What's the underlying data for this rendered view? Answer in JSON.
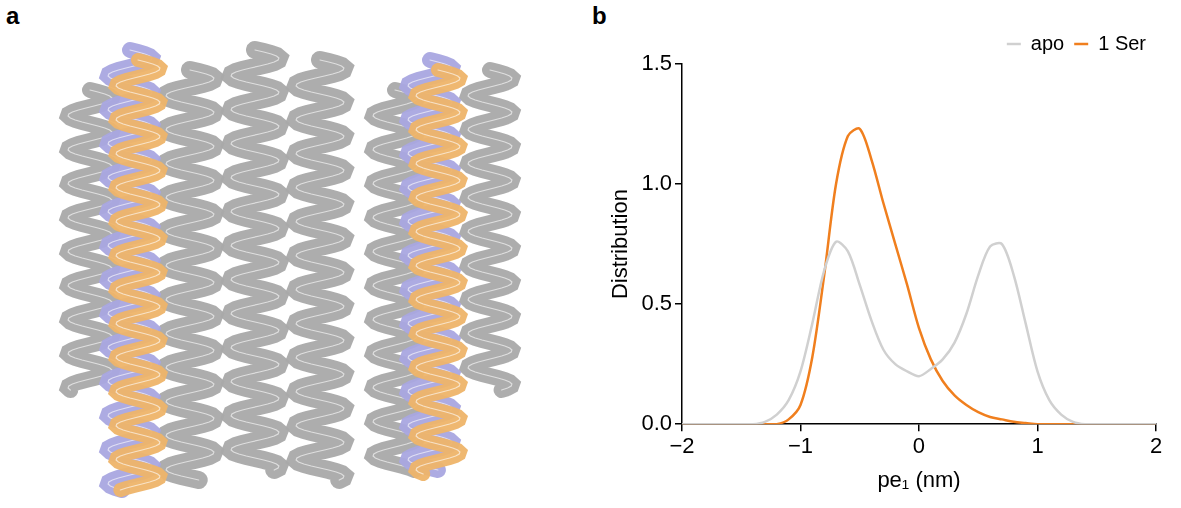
{
  "panel_labels": [
    "a",
    "b"
  ],
  "chart_data": {
    "type": "line",
    "x_label": "pe₁ (nm)",
    "y_label": "Distribution",
    "x": [
      -2.0,
      -1.9,
      -1.8,
      -1.7,
      -1.6,
      -1.5,
      -1.4,
      -1.3,
      -1.2,
      -1.1,
      -1.0,
      -0.9,
      -0.8,
      -0.7,
      -0.6,
      -0.5,
      -0.4,
      -0.3,
      -0.2,
      -0.1,
      0.0,
      0.1,
      0.2,
      0.3,
      0.4,
      0.5,
      0.6,
      0.7,
      0.8,
      0.9,
      1.0,
      1.1,
      1.2,
      1.3,
      1.4,
      1.5,
      1.6,
      1.7,
      1.8,
      1.9,
      2.0
    ],
    "series": [
      {
        "name": "apo",
        "color": "#d0d0d0",
        "values": [
          0,
          0,
          0,
          0,
          0,
          0,
          0,
          0.01,
          0.04,
          0.1,
          0.22,
          0.42,
          0.64,
          0.76,
          0.72,
          0.58,
          0.43,
          0.31,
          0.25,
          0.22,
          0.2,
          0.23,
          0.27,
          0.34,
          0.46,
          0.62,
          0.74,
          0.75,
          0.62,
          0.42,
          0.22,
          0.1,
          0.04,
          0.01,
          0,
          0,
          0,
          0,
          0,
          0,
          0
        ]
      },
      {
        "name": "1 Ser",
        "color": "#f07f1e",
        "values": [
          0,
          0,
          0,
          0,
          0,
          0,
          0,
          0,
          0,
          0.02,
          0.08,
          0.28,
          0.62,
          1.0,
          1.2,
          1.23,
          1.1,
          0.92,
          0.75,
          0.58,
          0.4,
          0.27,
          0.18,
          0.12,
          0.08,
          0.05,
          0.03,
          0.02,
          0.01,
          0.005,
          0,
          0,
          0,
          0,
          0,
          0,
          0,
          0,
          0,
          0,
          0
        ]
      }
    ],
    "xlim": [
      -2,
      2
    ],
    "xticks": [
      {
        "value": -2,
        "label": "−2"
      },
      {
        "value": -1,
        "label": "−1"
      },
      0,
      1,
      2
    ],
    "ylim": [
      0,
      1.5
    ],
    "yticks": [
      {
        "value": 0,
        "label": "0.0"
      },
      0.5,
      {
        "value": 1,
        "label": "1.0"
      },
      1.5
    ],
    "grid": false,
    "legend": "upper right"
  }
}
